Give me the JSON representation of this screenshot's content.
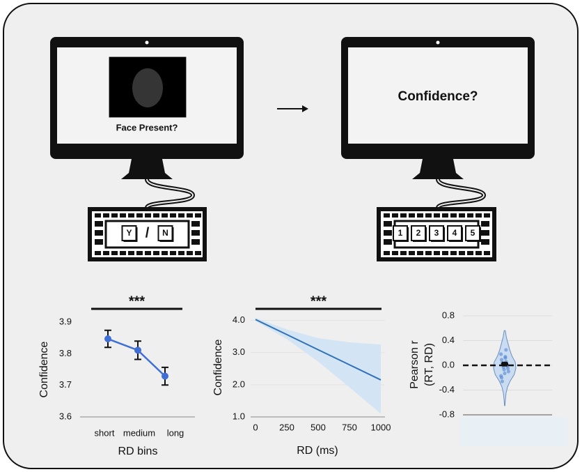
{
  "diagram": {
    "left_screen_text": "Face Present?",
    "left_keys": [
      "Y",
      "/",
      "N"
    ],
    "right_screen_text": "Confidence?",
    "right_keys": [
      "1",
      "2",
      "3",
      "4",
      "5"
    ]
  },
  "chart_data": [
    {
      "type": "errorbar",
      "annotation": "***",
      "ylabel": "Confidence",
      "xlabel": "RD bins",
      "categories": [
        "short",
        "medium",
        "long"
      ],
      "values": [
        3.847,
        3.811,
        3.729
      ],
      "errors": [
        0.027,
        0.029,
        0.028
      ],
      "color": "#3f6fd6",
      "ylim": [
        3.6,
        3.9
      ],
      "yticks": [
        3.6,
        3.7,
        3.8,
        3.9
      ]
    },
    {
      "type": "line",
      "annotation": "***",
      "ylabel": "Confidence",
      "xlabel": "RD (ms)",
      "x": [
        0,
        250,
        500,
        750,
        1000
      ],
      "values": [
        4.03,
        3.56,
        3.09,
        2.62,
        2.15
      ],
      "upper": [
        4.08,
        3.72,
        3.45,
        3.32,
        3.25
      ],
      "lower": [
        3.98,
        3.42,
        2.72,
        1.92,
        1.1
      ],
      "color": "#2f72b8",
      "band_color": "#d3e4f4",
      "xlim": [
        0,
        1000
      ],
      "xticks": [
        0,
        250,
        500,
        750,
        1000
      ],
      "ylim": [
        1,
        4.1
      ],
      "yticks": [
        {
          "value": 1,
          "label": "1.0"
        },
        {
          "value": 2,
          "label": "2.0"
        },
        {
          "value": 3,
          "label": "3.0"
        },
        {
          "value": 4,
          "label": "4.0"
        }
      ],
      "grid": true
    },
    {
      "type": "violin",
      "ylabel": [
        "Pearson r",
        "(RT, RD)"
      ],
      "ylim": [
        -0.8,
        0.8
      ],
      "yticks": [
        0.8,
        0.4,
        {
          "value": 0,
          "label": "0.0"
        },
        -0.4,
        -0.8
      ],
      "grid": true,
      "reference_line": 0,
      "violin_y": [
        0.56,
        0.45,
        0.35,
        0.25,
        0.15,
        0.05,
        -0.05,
        -0.15,
        -0.25,
        -0.35,
        -0.45,
        -0.55,
        -0.65
      ],
      "density": [
        0.05,
        0.15,
        0.3,
        0.45,
        0.65,
        0.95,
        1.0,
        0.85,
        0.5,
        0.25,
        0.12,
        0.06,
        0.02
      ],
      "points": [
        0.18,
        0.12,
        0.09,
        0.06,
        0.04,
        0.02,
        0.01,
        -0.01,
        -0.03,
        -0.05,
        -0.07,
        -0.1,
        -0.13,
        -0.17,
        0.14,
        -0.2,
        0.25,
        -0.26
      ],
      "mean": 0.02,
      "error": 0.03,
      "color": "#4a7fd0",
      "fill": "#c9dcf2"
    }
  ]
}
